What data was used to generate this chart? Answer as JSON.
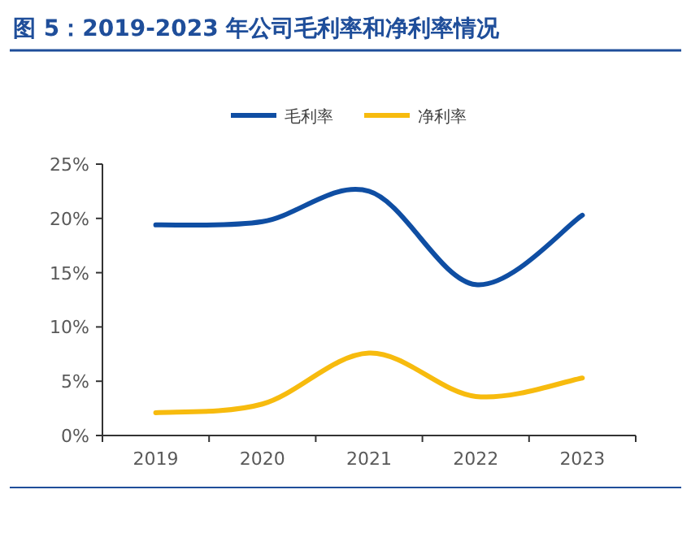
{
  "chart_data": {
    "type": "line",
    "title": "图 5：2019-2023 年公司毛利率和净利率情况",
    "categories": [
      "2019",
      "2020",
      "2021",
      "2022",
      "2023"
    ],
    "series": [
      {
        "name": "毛利率",
        "color": "#0f4ea3",
        "values": [
          19.4,
          19.7,
          22.5,
          13.9,
          20.3
        ]
      },
      {
        "name": "净利率",
        "color": "#f7bb0e",
        "values": [
          2.1,
          2.9,
          7.6,
          3.6,
          5.3
        ]
      }
    ],
    "ylim": [
      0,
      25
    ],
    "yticks": [
      {
        "value": 0,
        "label": "0%"
      },
      {
        "value": 5,
        "label": "5%"
      },
      {
        "value": 10,
        "label": "10%"
      },
      {
        "value": 15,
        "label": "15%"
      },
      {
        "value": 20,
        "label": "20%"
      },
      {
        "value": 25,
        "label": "25%"
      }
    ],
    "grid": false,
    "legend": "top",
    "marker": "none",
    "line_style": "solid"
  }
}
